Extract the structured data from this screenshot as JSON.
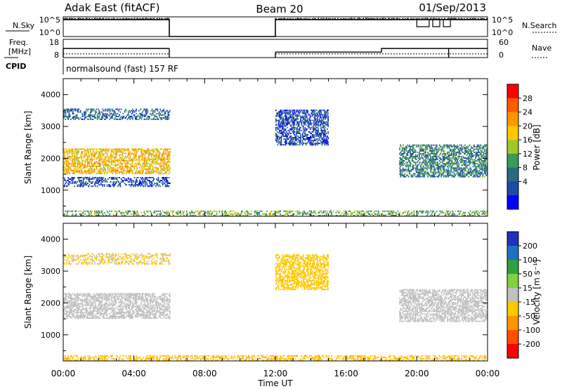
{
  "header": {
    "station": "Adak East (fitACF)",
    "beam": "Beam 20",
    "date": "01/Sep/2013"
  },
  "params": {
    "nsky_label": "N.Sky",
    "nsearch_label": "N.Search",
    "freq_label_1": "Freq.",
    "freq_label_2": "[MHz]",
    "nave_label": "Nave",
    "cpid_label": "CPID",
    "cpid_text": "normalsound (fast) 157 RF",
    "noise_ticks_left": [
      "10^5",
      "10^0"
    ],
    "noise_ticks_right": [
      "10^5",
      "10^0"
    ],
    "freq_ticks": [
      "18",
      "8"
    ],
    "nave_ticks": [
      "60",
      "0"
    ]
  },
  "axis": {
    "xlabel": "Time UT",
    "ylabel": "Slant Range [km]",
    "xticks": [
      "00:00",
      "04:00",
      "08:00",
      "12:00",
      "16:00",
      "20:00",
      "00:00"
    ],
    "yticks": [
      "4000",
      "3000",
      "2000",
      "1000"
    ]
  },
  "colorbars": {
    "power": {
      "label": "Power [dB]",
      "ticks": [
        "28",
        "24",
        "20",
        "16",
        "12",
        "8",
        "4"
      ],
      "colors": [
        "#ff0000",
        "#ff5a00",
        "#ff9600",
        "#ffc800",
        "#a0c828",
        "#3a9a5a",
        "#2a6a80",
        "#1e4aa8",
        "#0000ff"
      ]
    },
    "velocity": {
      "label": "Velocity [m s⁻¹]",
      "ticks": [
        "200",
        "100",
        "50",
        "15",
        "-15",
        "-50",
        "-100",
        "-200"
      ],
      "colors": [
        "#2030c0",
        "#2070c0",
        "#30a040",
        "#80d040",
        "#c0c0c0",
        "#ffc800",
        "#ff9600",
        "#ff5000",
        "#ff0000"
      ]
    }
  },
  "chart_data": [
    {
      "type": "line",
      "title": "N.Sky / N.Search",
      "x_hours": [
        0,
        6,
        6,
        12,
        12,
        24
      ],
      "nsky_log": [
        4.3,
        4.3,
        0,
        0,
        4.3,
        4.3
      ],
      "ylim_log": [
        0,
        5
      ],
      "gaps_hours": [
        [
          6,
          12
        ]
      ]
    },
    {
      "type": "line",
      "title": "Freq. / Nave",
      "x_hours": [
        0,
        6,
        6,
        12,
        12,
        18,
        18,
        24
      ],
      "freq_mhz": [
        13,
        13,
        null,
        null,
        11,
        11,
        13,
        13
      ],
      "ylim": [
        8,
        18
      ],
      "nave_ylim": [
        0,
        60
      ]
    },
    {
      "type": "heatmap",
      "name": "Power",
      "xlim_hours": [
        0,
        24
      ],
      "ylim_km": [
        180,
        4500
      ],
      "features": [
        {
          "t0": 0,
          "t1": 6,
          "r0": 1500,
          "r1": 2300,
          "power_db": 20
        },
        {
          "t0": 0,
          "t1": 6,
          "r0": 3200,
          "r1": 3550,
          "power_db": 8
        },
        {
          "t0": 0,
          "t1": 6,
          "r0": 1100,
          "r1": 1400,
          "power_db": 6
        },
        {
          "t0": 12,
          "t1": 15,
          "r0": 2400,
          "r1": 3500,
          "power_db": 6
        },
        {
          "t0": 19,
          "t1": 24,
          "r0": 1400,
          "r1": 2400,
          "power_db": 10
        },
        {
          "t0": 0,
          "t1": 24,
          "r0": 180,
          "r1": 320,
          "power_db": 14
        }
      ]
    },
    {
      "type": "heatmap",
      "name": "Velocity",
      "xlim_hours": [
        0,
        24
      ],
      "ylim_km": [
        180,
        4500
      ],
      "features": [
        {
          "t0": 0,
          "t1": 6,
          "r0": 1500,
          "r1": 2300,
          "velocity": 0
        },
        {
          "t0": 0,
          "t1": 6,
          "r0": 3200,
          "r1": 3550,
          "velocity": -20
        },
        {
          "t0": 12,
          "t1": 15,
          "r0": 2400,
          "r1": 3500,
          "velocity": -30
        },
        {
          "t0": 19,
          "t1": 24,
          "r0": 1400,
          "r1": 2400,
          "velocity": 0
        },
        {
          "t0": 0,
          "t1": 24,
          "r0": 180,
          "r1": 320,
          "velocity": -40
        }
      ]
    }
  ]
}
